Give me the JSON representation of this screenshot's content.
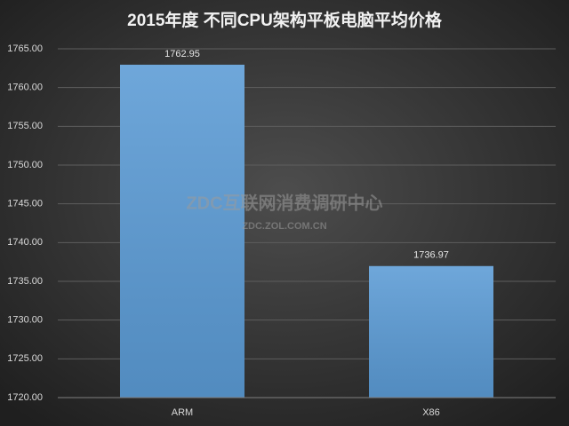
{
  "chart_data": {
    "type": "bar",
    "title": "2015年度 不同CPU架构平板电脑平均价格",
    "categories": [
      "ARM",
      "X86"
    ],
    "values": [
      1762.95,
      1736.97
    ],
    "color": "#5b9bd5",
    "ylim": [
      1720,
      1765
    ],
    "yticks": [
      {
        "value": 1720,
        "label": "1720.00"
      },
      {
        "value": 1725,
        "label": "1725.00"
      },
      {
        "value": 1730,
        "label": "1730.00"
      },
      {
        "value": 1735,
        "label": "1735.00"
      },
      {
        "value": 1740,
        "label": "1740.00"
      },
      {
        "value": 1745,
        "label": "1745.00"
      },
      {
        "value": 1750,
        "label": "1750.00"
      },
      {
        "value": 1755,
        "label": "1755.00"
      },
      {
        "value": 1760,
        "label": "1760.00"
      },
      {
        "value": 1765,
        "label": "1765.00"
      }
    ],
    "grid": true,
    "data_labels": true,
    "annotations": [
      "ZDC互联网消费调研中心",
      "ZDC.ZOL.COM.CN"
    ]
  }
}
